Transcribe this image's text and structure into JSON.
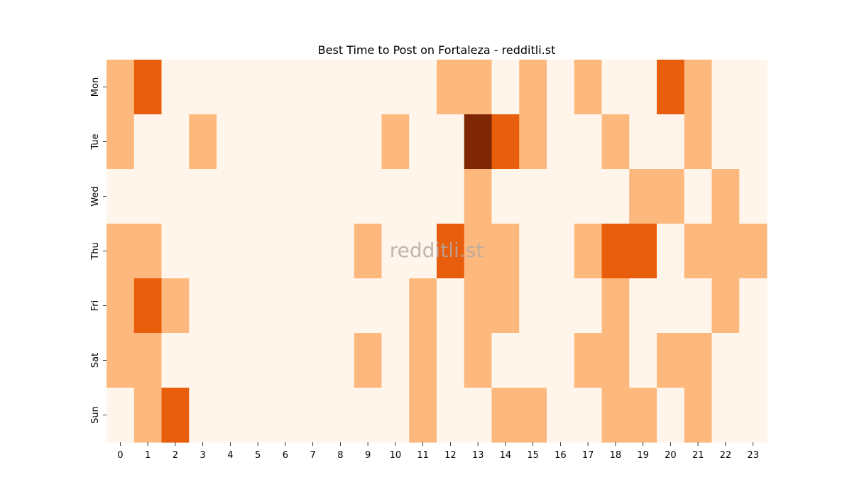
{
  "chart_data": {
    "type": "heatmap",
    "title": "Best Time to Post on Fortaleza - redditli.st",
    "watermark": "redditli.st",
    "xlabel": "",
    "ylabel": "",
    "x_categories": [
      "0",
      "1",
      "2",
      "3",
      "4",
      "5",
      "6",
      "7",
      "8",
      "9",
      "10",
      "11",
      "12",
      "13",
      "14",
      "15",
      "16",
      "17",
      "18",
      "19",
      "20",
      "21",
      "22",
      "23"
    ],
    "y_categories": [
      "Mon",
      "Tue",
      "Wed",
      "Thu",
      "Fri",
      "Sat",
      "Sun"
    ],
    "value_scale": [
      0,
      3
    ],
    "colors": [
      "#fff5eb",
      "#fdb97d",
      "#e95e0d",
      "#7f2704"
    ],
    "values": [
      [
        1,
        2,
        0,
        0,
        0,
        0,
        0,
        0,
        0,
        0,
        0,
        0,
        1,
        1,
        0,
        1,
        0,
        1,
        0,
        0,
        2,
        1,
        0,
        0
      ],
      [
        1,
        0,
        0,
        1,
        0,
        0,
        0,
        0,
        0,
        0,
        1,
        0,
        0,
        3,
        2,
        1,
        0,
        0,
        1,
        0,
        0,
        1,
        0,
        0
      ],
      [
        0,
        0,
        0,
        0,
        0,
        0,
        0,
        0,
        0,
        0,
        0,
        0,
        0,
        1,
        0,
        0,
        0,
        0,
        0,
        1,
        1,
        0,
        1,
        0
      ],
      [
        1,
        1,
        0,
        0,
        0,
        0,
        0,
        0,
        0,
        1,
        0,
        0,
        2,
        1,
        1,
        0,
        0,
        1,
        2,
        2,
        0,
        1,
        1,
        1
      ],
      [
        1,
        2,
        1,
        0,
        0,
        0,
        0,
        0,
        0,
        0,
        0,
        1,
        0,
        1,
        1,
        0,
        0,
        0,
        1,
        0,
        0,
        0,
        1,
        0
      ],
      [
        1,
        1,
        0,
        0,
        0,
        0,
        0,
        0,
        0,
        1,
        0,
        1,
        0,
        1,
        0,
        0,
        0,
        1,
        1,
        0,
        1,
        1,
        0,
        0
      ],
      [
        0,
        1,
        2,
        0,
        0,
        0,
        0,
        0,
        0,
        0,
        0,
        1,
        0,
        0,
        1,
        1,
        0,
        0,
        1,
        1,
        0,
        1,
        0,
        0
      ]
    ]
  }
}
